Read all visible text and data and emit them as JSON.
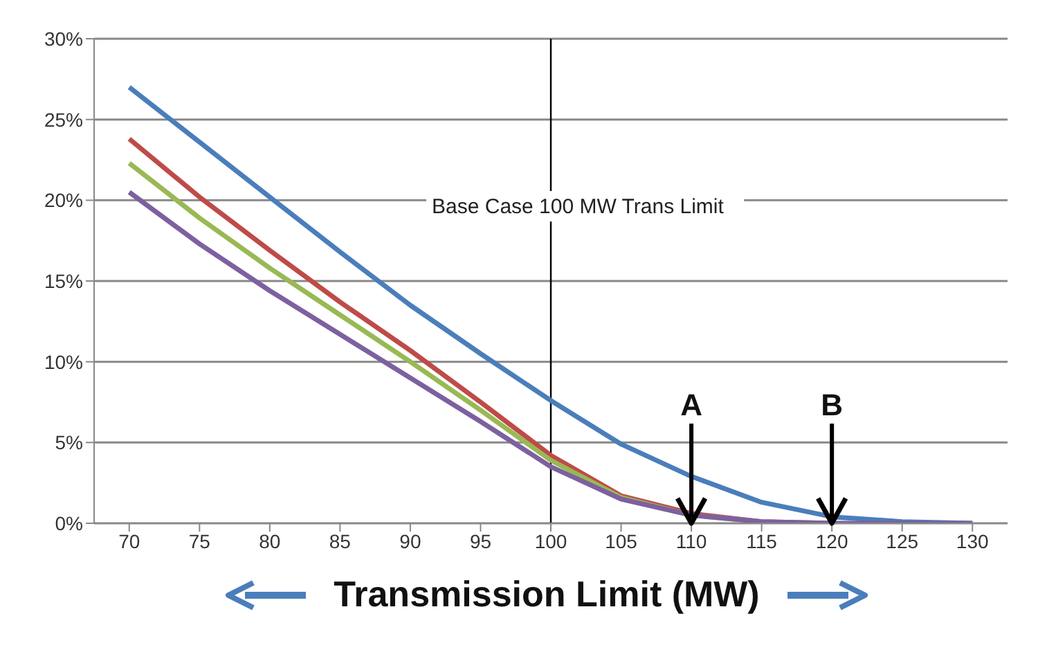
{
  "chart_data": {
    "type": "line",
    "xlabel": "Transmission Limit (MW)",
    "x": [
      70,
      75,
      80,
      85,
      90,
      95,
      100,
      105,
      110,
      115,
      120,
      125,
      130
    ],
    "series": [
      {
        "color": "#4a7ebb",
        "values": [
          27,
          23.6,
          20.2,
          16.8,
          13.5,
          10.5,
          7.6,
          4.9,
          2.9,
          1.3,
          0.4,
          0.1,
          0
        ]
      },
      {
        "color": "#be4b48",
        "values": [
          23.8,
          20.2,
          16.9,
          13.7,
          10.7,
          7.5,
          4.2,
          1.7,
          0.6,
          0.1,
          0,
          null,
          null
        ]
      },
      {
        "color": "#98b954",
        "values": [
          22.3,
          18.9,
          15.8,
          12.9,
          10,
          7,
          3.9,
          1.6,
          0.5,
          0.1,
          null,
          null,
          null
        ]
      },
      {
        "color": "#7d60a0",
        "values": [
          20.5,
          17.3,
          14.4,
          11.7,
          9,
          6.3,
          3.5,
          1.5,
          0.5,
          0.1,
          0,
          0,
          0
        ]
      }
    ],
    "xlim": [
      67.5,
      132.5
    ],
    "xticks": [
      70,
      75,
      80,
      85,
      90,
      95,
      100,
      105,
      110,
      115,
      120,
      125,
      130
    ],
    "ylim": [
      0,
      30
    ],
    "yticks": [
      {
        "value": 0,
        "label": "0%"
      },
      {
        "value": 5,
        "label": "5%"
      },
      {
        "value": 10,
        "label": "10%"
      },
      {
        "value": 15,
        "label": "15%"
      },
      {
        "value": 20,
        "label": "20%"
      },
      {
        "value": 25,
        "label": "25%"
      },
      {
        "value": 30,
        "label": "30%"
      }
    ],
    "ref_lines": [
      {
        "axis": "x",
        "value": 100,
        "label": "Base Case 100 MW Trans Limit",
        "color": "#000000"
      }
    ],
    "annotations": [
      {
        "text": "A",
        "x": 110,
        "y": 0
      },
      {
        "text": "B",
        "x": 120,
        "y": 0
      }
    ],
    "grid": "y",
    "legend": false,
    "marker": "none",
    "line_style": "solid"
  }
}
